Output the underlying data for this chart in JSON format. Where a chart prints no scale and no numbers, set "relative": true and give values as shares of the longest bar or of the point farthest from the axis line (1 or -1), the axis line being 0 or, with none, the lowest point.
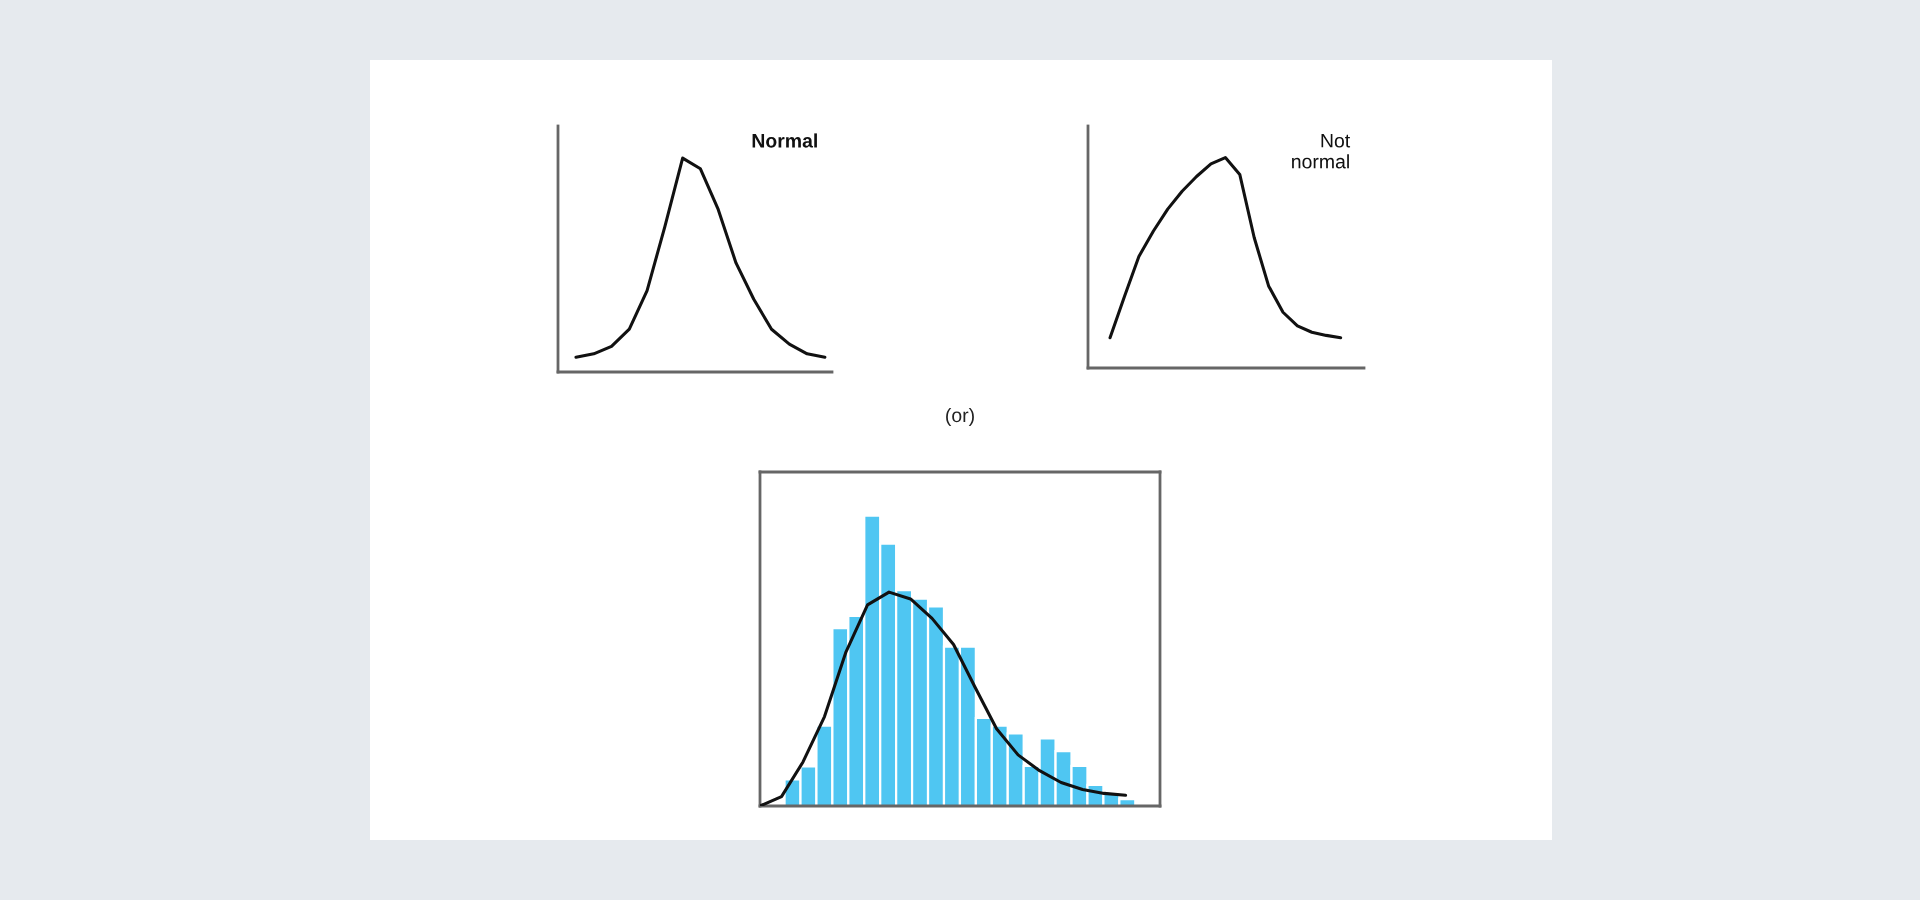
{
  "chart_data": [
    {
      "type": "line",
      "relative": true,
      "annotations": [
        "Normal"
      ],
      "color": "#111111",
      "categories": [
        null,
        null,
        null,
        null,
        null,
        null,
        null,
        null,
        null,
        null,
        null,
        null,
        null,
        null,
        null
      ],
      "values": [
        0.069,
        0.085,
        0.12,
        0.2,
        0.38,
        0.68,
        1,
        0.95,
        0.76,
        0.51,
        0.34,
        0.2,
        0.13,
        0.085,
        0.069
      ]
    },
    {
      "type": "line",
      "relative": true,
      "annotations": [
        "Not\nnormal"
      ],
      "color": "#111111",
      "categories": [
        null,
        null,
        null,
        null,
        null,
        null,
        null,
        null,
        null,
        null,
        null,
        null,
        null,
        null,
        null,
        null,
        null
      ],
      "values": [
        0.144,
        0.34,
        0.53,
        0.65,
        0.755,
        0.84,
        0.91,
        0.97,
        1,
        0.92,
        0.62,
        0.39,
        0.265,
        0.2,
        0.17,
        0.155,
        0.144
      ]
    },
    {
      "type": "bar",
      "relative": true,
      "title": "(or)",
      "color": "#4fc6f2",
      "categories": [
        null,
        null,
        null,
        null,
        null,
        null,
        null,
        null,
        null,
        null,
        null,
        null,
        null,
        null,
        null,
        null,
        null,
        null,
        null,
        null,
        null,
        null
      ],
      "values": [
        0.092,
        0.136,
        0.277,
        0.612,
        0.655,
        1,
        0.903,
        0.743,
        0.714,
        0.687,
        0.549,
        0.549,
        0.303,
        0.277,
        0.25,
        0.138,
        0.233,
        0.189,
        0.138,
        0.073,
        0.049,
        0.024
      ]
    },
    {
      "type": "line",
      "relative": true,
      "color": "#111111",
      "categories": [
        null,
        null,
        null,
        null,
        null,
        null,
        null,
        null,
        null,
        null,
        null,
        null,
        null,
        null,
        null,
        null,
        null,
        null
      ],
      "values": [
        0,
        0.044,
        0.206,
        0.418,
        0.721,
        0.94,
        1,
        0.968,
        0.877,
        0.755,
        0.555,
        0.361,
        0.239,
        0.165,
        0.11,
        0.077,
        0.059,
        0.05
      ]
    }
  ]
}
